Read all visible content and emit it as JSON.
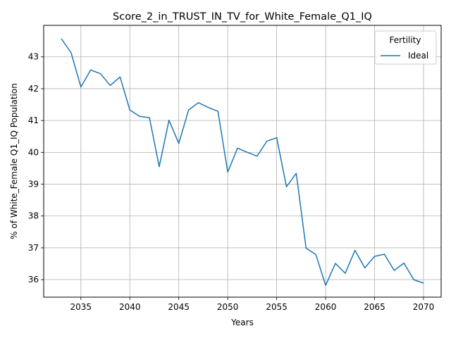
{
  "chart_data": {
    "type": "line",
    "title": "Score_2_in_TRUST_IN_TV_for_White_Female_Q1_IQ",
    "xlabel": "Years",
    "ylabel": "% of White_Female Q1_IQ Population",
    "xlim": [
      2031.2,
      2071.8
    ],
    "ylim": [
      35.45,
      43.99
    ],
    "xticks": [
      2035,
      2040,
      2045,
      2050,
      2055,
      2060,
      2065,
      2070
    ],
    "yticks": [
      36,
      37,
      38,
      39,
      40,
      41,
      42,
      43
    ],
    "grid": true,
    "legend": {
      "title": "Fertility",
      "position": "top-right"
    },
    "series": [
      {
        "name": "Ideal",
        "color": "#1f77b4",
        "x": [
          2033,
          2034,
          2035,
          2036,
          2037,
          2038,
          2039,
          2040,
          2041,
          2042,
          2043,
          2044,
          2045,
          2046,
          2047,
          2048,
          2049,
          2050,
          2051,
          2052,
          2053,
          2054,
          2055,
          2056,
          2057,
          2058,
          2059,
          2060,
          2061,
          2062,
          2063,
          2064,
          2065,
          2066,
          2067,
          2068,
          2069,
          2070
        ],
        "values": [
          43.57,
          43.13,
          42.05,
          42.59,
          42.47,
          42.1,
          42.37,
          41.33,
          41.13,
          41.09,
          39.55,
          41.01,
          40.28,
          41.33,
          41.56,
          41.41,
          41.29,
          39.38,
          40.13,
          40.0,
          39.88,
          40.35,
          40.46,
          38.92,
          39.34,
          36.99,
          36.79,
          35.82,
          36.51,
          36.2,
          36.92,
          36.37,
          36.73,
          36.8,
          36.29,
          36.52,
          36.0,
          35.89
        ]
      }
    ]
  }
}
